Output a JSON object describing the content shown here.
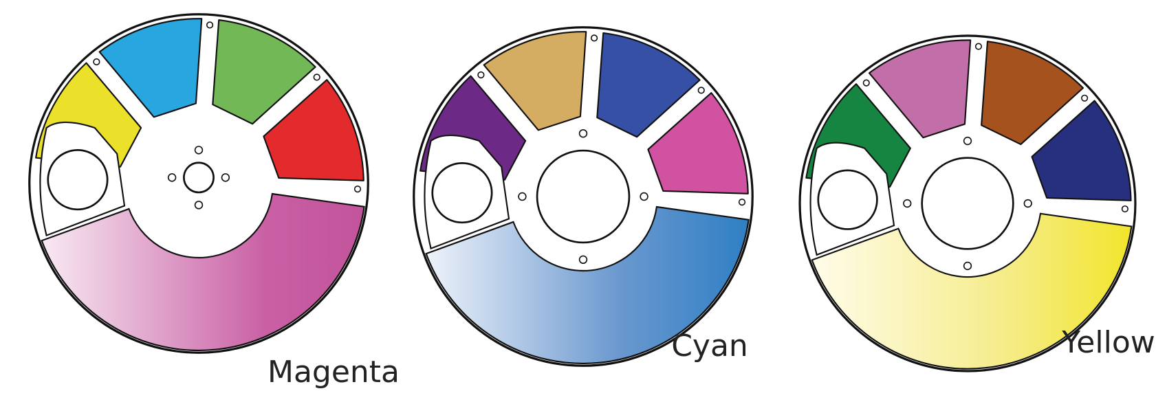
{
  "wheels": [
    {
      "label": "Magenta"
    },
    {
      "label": "Cyan"
    },
    {
      "label": "Yellow"
    }
  ]
}
